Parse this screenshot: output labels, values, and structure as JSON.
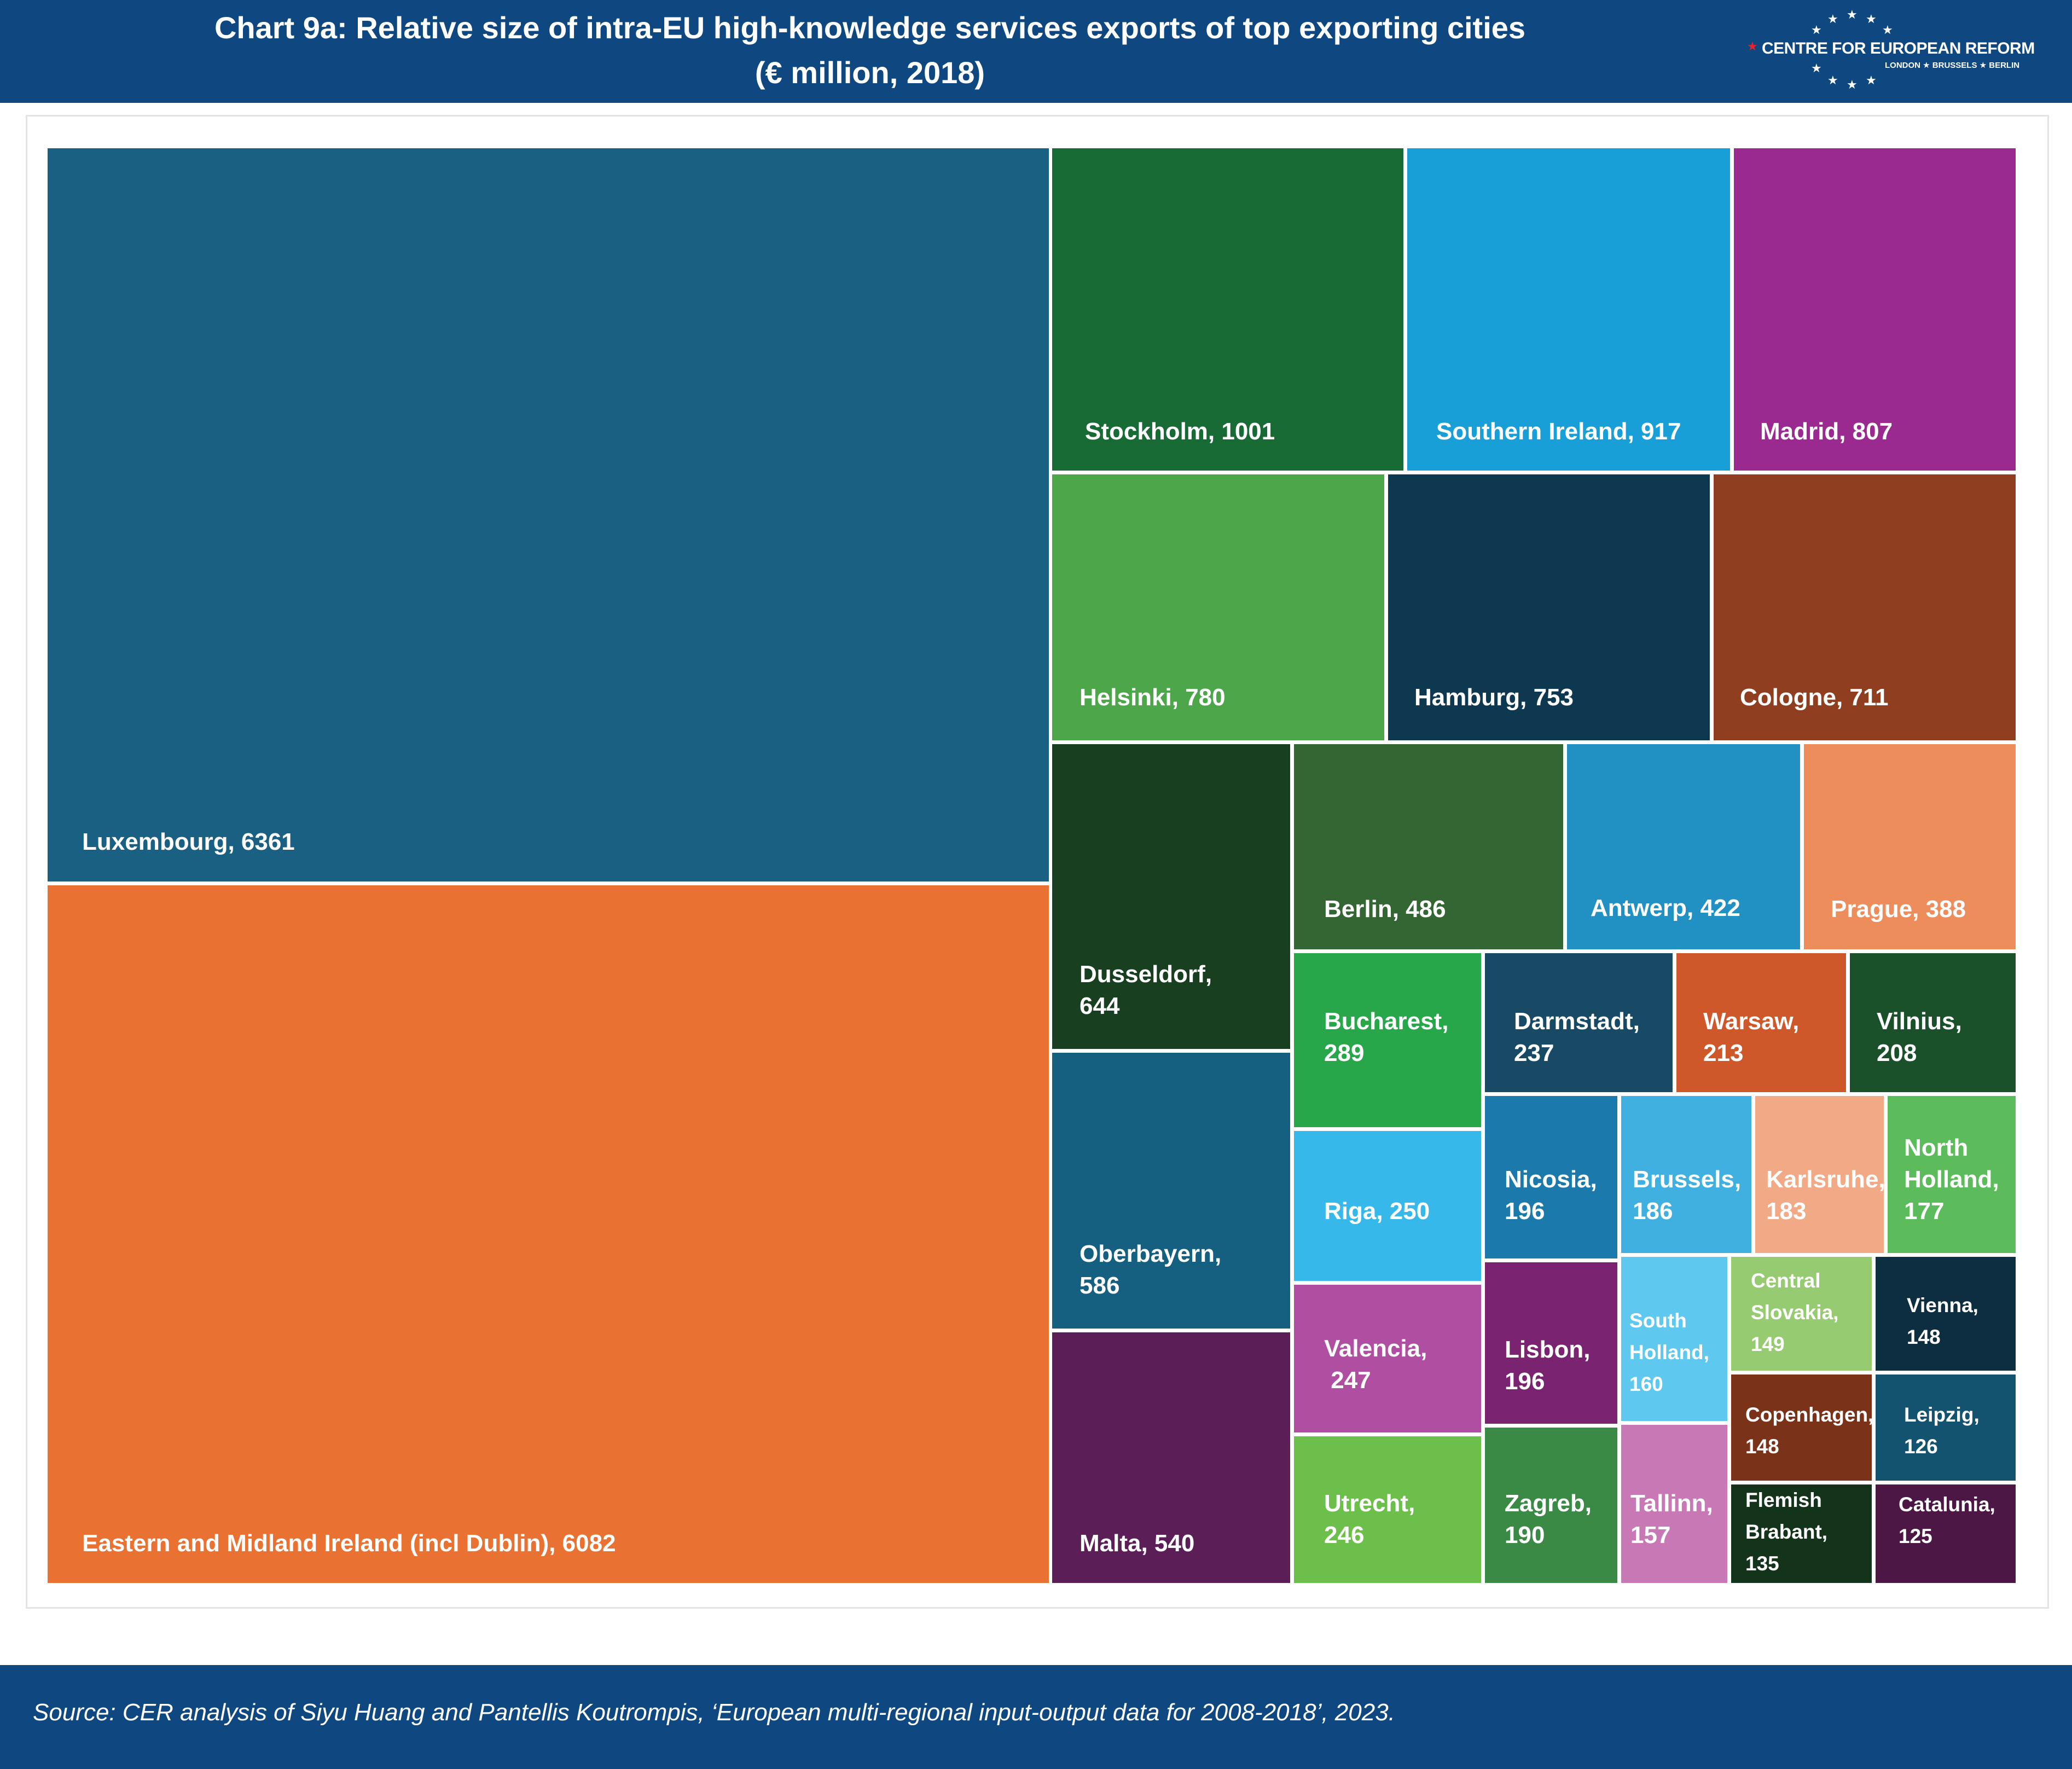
{
  "header": {
    "title_line1": "Chart 9a: Relative size of intra-EU high-knowledge services exports of top exporting cities",
    "title_line2": "(€ million, 2018)",
    "logo_name": "CENTRE FOR EUROPEAN REFORM",
    "logo_cities": "LONDON ★ BRUSSELS ★ BERLIN"
  },
  "footer": {
    "source": "Source: CER analysis of Siyu Huang and Pantellis Koutrompis, ‘European multi-regional input-output data for 2008-2018’, 2023."
  },
  "chart_data": {
    "type": "treemap",
    "title": "Chart 9a: Relative size of intra-EU high-knowledge services exports of top exporting cities",
    "subtitle": "(€ million, 2018)",
    "unit": "€ million",
    "items": [
      {
        "name": "Luxembourg",
        "value": 6361,
        "label_lines": [
          "Luxembourg, 6361"
        ],
        "color": "#1a6082"
      },
      {
        "name": "Eastern and Midland Ireland (incl Dublin)",
        "value": 6082,
        "label_lines": [
          "Eastern and Midland Ireland (incl Dublin), 6082"
        ],
        "color": "#e97132"
      },
      {
        "name": "Stockholm",
        "value": 1001,
        "label_lines": [
          "Stockholm, 1001"
        ],
        "color": "#196b35"
      },
      {
        "name": "Southern Ireland",
        "value": 917,
        "label_lines": [
          "Southern Ireland, 917"
        ],
        "color": "#199fd8"
      },
      {
        "name": "Madrid",
        "value": 807,
        "label_lines": [
          "Madrid, 807"
        ],
        "color": "#9b2a90"
      },
      {
        "name": "Helsinki",
        "value": 780,
        "label_lines": [
          "Helsinki, 780"
        ],
        "color": "#4ea64a"
      },
      {
        "name": "Hamburg",
        "value": 753,
        "label_lines": [
          "Hamburg, 753"
        ],
        "color": "#0e3850"
      },
      {
        "name": "Cologne",
        "value": 711,
        "label_lines": [
          "Cologne, 711"
        ],
        "color": "#8f3f1f"
      },
      {
        "name": "Dusseldorf",
        "value": 644,
        "label_lines": [
          "Dusseldorf,",
          "644"
        ],
        "color": "#173f20"
      },
      {
        "name": "Berlin",
        "value": 486,
        "label_lines": [
          "Berlin, 486"
        ],
        "color": "#336633"
      },
      {
        "name": "Antwerp",
        "value": 422,
        "label_lines": [
          "Antwerp, 422"
        ],
        "color": "#2190c2"
      },
      {
        "name": "Prague",
        "value": 388,
        "label_lines": [
          "Prague, 388"
        ],
        "color": "#ee8d5c"
      },
      {
        "name": "Oberbayern",
        "value": 586,
        "label_lines": [
          "Oberbayern,",
          "586"
        ],
        "color": "#155f80"
      },
      {
        "name": "Malta",
        "value": 540,
        "label_lines": [
          "Malta, 540"
        ],
        "color": "#5c1e56"
      },
      {
        "name": "Bucharest",
        "value": 289,
        "label_lines": [
          "Bucharest,",
          "289"
        ],
        "color": "#27a74a"
      },
      {
        "name": "Darmstadt",
        "value": 237,
        "label_lines": [
          "Darmstadt,",
          "237"
        ],
        "color": "#184a66"
      },
      {
        "name": "Warsaw",
        "value": 213,
        "label_lines": [
          "Warsaw,",
          "213"
        ],
        "color": "#cf582a"
      },
      {
        "name": "Vilnius",
        "value": 208,
        "label_lines": [
          "Vilnius,",
          "208"
        ],
        "color": "#1a512b"
      },
      {
        "name": "Riga",
        "value": 250,
        "label_lines": [
          "Riga, 250"
        ],
        "color": "#37b8ea"
      },
      {
        "name": "Nicosia",
        "value": 196,
        "label_lines": [
          "Nicosia,",
          "196"
        ],
        "color": "#1b7aab"
      },
      {
        "name": "Brussels",
        "value": 186,
        "label_lines": [
          "Brussels,",
          "186"
        ],
        "color": "#3fb0e0"
      },
      {
        "name": "Karlsruhe",
        "value": 183,
        "label_lines": [
          "Karlsruhe,",
          "183"
        ],
        "color": "#f2a985"
      },
      {
        "name": "North Holland",
        "value": 177,
        "label_lines": [
          "North",
          "Holland,",
          "177"
        ],
        "color": "#5cbb5a"
      },
      {
        "name": "Valencia",
        "value": 247,
        "label_lines": [
          "Valencia,",
          " 247"
        ],
        "color": "#b04fa2"
      },
      {
        "name": "Lisbon",
        "value": 196,
        "label_lines": [
          "Lisbon,",
          "196"
        ],
        "color": "#7a2370"
      },
      {
        "name": "South Holland",
        "value": 160,
        "label_lines": [
          "South",
          "Holland,",
          "160"
        ],
        "color": "#5ec8ef"
      },
      {
        "name": "Central Slovakia",
        "value": 149,
        "label_lines": [
          "Central",
          "Slovakia,",
          "149"
        ],
        "color": "#96cb71"
      },
      {
        "name": "Vienna",
        "value": 148,
        "label_lines": [
          "Vienna,",
          "148"
        ],
        "color": "#0d2e40"
      },
      {
        "name": "Copenhagen",
        "value": 148,
        "label_lines": [
          "Copenhagen,",
          "148"
        ],
        "color": "#7a3219"
      },
      {
        "name": "Leipzig",
        "value": 126,
        "label_lines": [
          "Leipzig,",
          "126"
        ],
        "color": "#145370"
      },
      {
        "name": "Utrecht",
        "value": 246,
        "label_lines": [
          "Utrecht,",
          "246"
        ],
        "color": "#6dbf4b"
      },
      {
        "name": "Zagreb",
        "value": 190,
        "label_lines": [
          "Zagreb,",
          "190"
        ],
        "color": "#3a8a46"
      },
      {
        "name": "Tallinn",
        "value": 157,
        "label_lines": [
          "Tallinn,",
          "157"
        ],
        "color": "#c878b4"
      },
      {
        "name": "Flemish Brabant",
        "value": 135,
        "label_lines": [
          "Flemish",
          "Brabant,",
          "135"
        ],
        "color": "#13331b"
      },
      {
        "name": "Catalunia",
        "value": 125,
        "label_lines": [
          "Catalunia,",
          "125"
        ],
        "color": "#4c1745"
      }
    ]
  }
}
